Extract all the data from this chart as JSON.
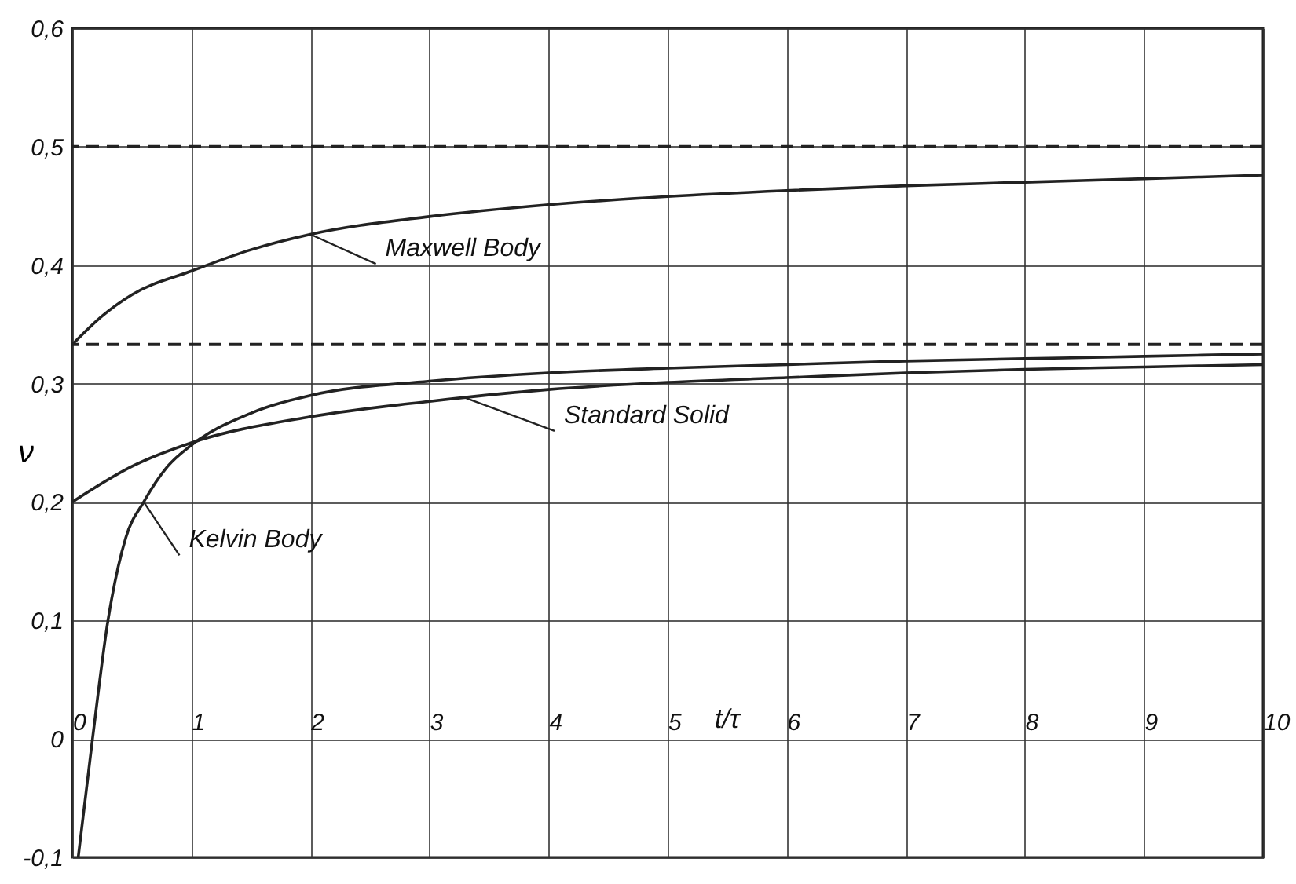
{
  "chart_data": {
    "type": "line",
    "xlabel": "t/τ",
    "ylabel": "ν",
    "xlim": [
      0,
      10
    ],
    "xticks": [
      0,
      1,
      2,
      3,
      4,
      5,
      6,
      7,
      8,
      9,
      10
    ],
    "ylim": [
      -0.1,
      0.6
    ],
    "yticks": [
      {
        "value": -0.1,
        "label": "-0,1"
      },
      {
        "value": 0,
        "label": "0"
      },
      {
        "value": 0.1,
        "label": "0,1"
      },
      {
        "value": 0.2,
        "label": "0,2"
      },
      {
        "value": 0.3,
        "label": "0,3"
      },
      {
        "value": 0.4,
        "label": "0,4"
      },
      {
        "value": 0.5,
        "label": "0,5"
      },
      {
        "value": 0.6,
        "label": "0,6"
      }
    ],
    "grid": true,
    "line_style": "solid",
    "series": [
      {
        "color": "#222222",
        "x": [
          0,
          0.25,
          0.5,
          1,
          1.5,
          2,
          3,
          4,
          5,
          6,
          7,
          8,
          9,
          10
        ],
        "values": [
          0.333,
          0.357,
          0.375,
          0.395,
          0.413,
          0.426,
          0.441,
          0.451,
          0.458,
          0.463,
          0.467,
          0.47,
          0.473,
          0.476
        ]
      },
      {
        "color": "#222222",
        "x": [
          0.05,
          0.17,
          0.3,
          0.45,
          0.6,
          0.8,
          1,
          1.5,
          2,
          3,
          4,
          5,
          6,
          7,
          8,
          9,
          10
        ],
        "values": [
          -0.1,
          0,
          0.1,
          0.17,
          0.2,
          0.23,
          0.248,
          0.275,
          0.29,
          0.302,
          0.309,
          0.313,
          0.316,
          0.319,
          0.321,
          0.323,
          0.325
        ]
      },
      {
        "color": "#222222",
        "x": [
          0,
          0.5,
          1,
          2,
          3,
          4,
          5,
          6,
          7,
          8,
          9,
          10
        ],
        "values": [
          0.2,
          0.23,
          0.25,
          0.272,
          0.285,
          0.295,
          0.301,
          0.305,
          0.309,
          0.312,
          0.314,
          0.316
        ]
      }
    ],
    "ref_lines": [
      {
        "axis": "y",
        "value": 0.5,
        "color": "#222222",
        "line_style": "dashed"
      },
      {
        "axis": "y",
        "value": 0.333,
        "color": "#222222",
        "line_style": "dashed"
      }
    ],
    "annotations": [
      {
        "text": "Maxwell Body",
        "x": 2,
        "y": 0.426
      },
      {
        "text": "Standard Solid",
        "x": 3.3,
        "y": 0.288
      },
      {
        "text": "Kelvin Body",
        "x": 0.6,
        "y": 0.2
      }
    ]
  }
}
